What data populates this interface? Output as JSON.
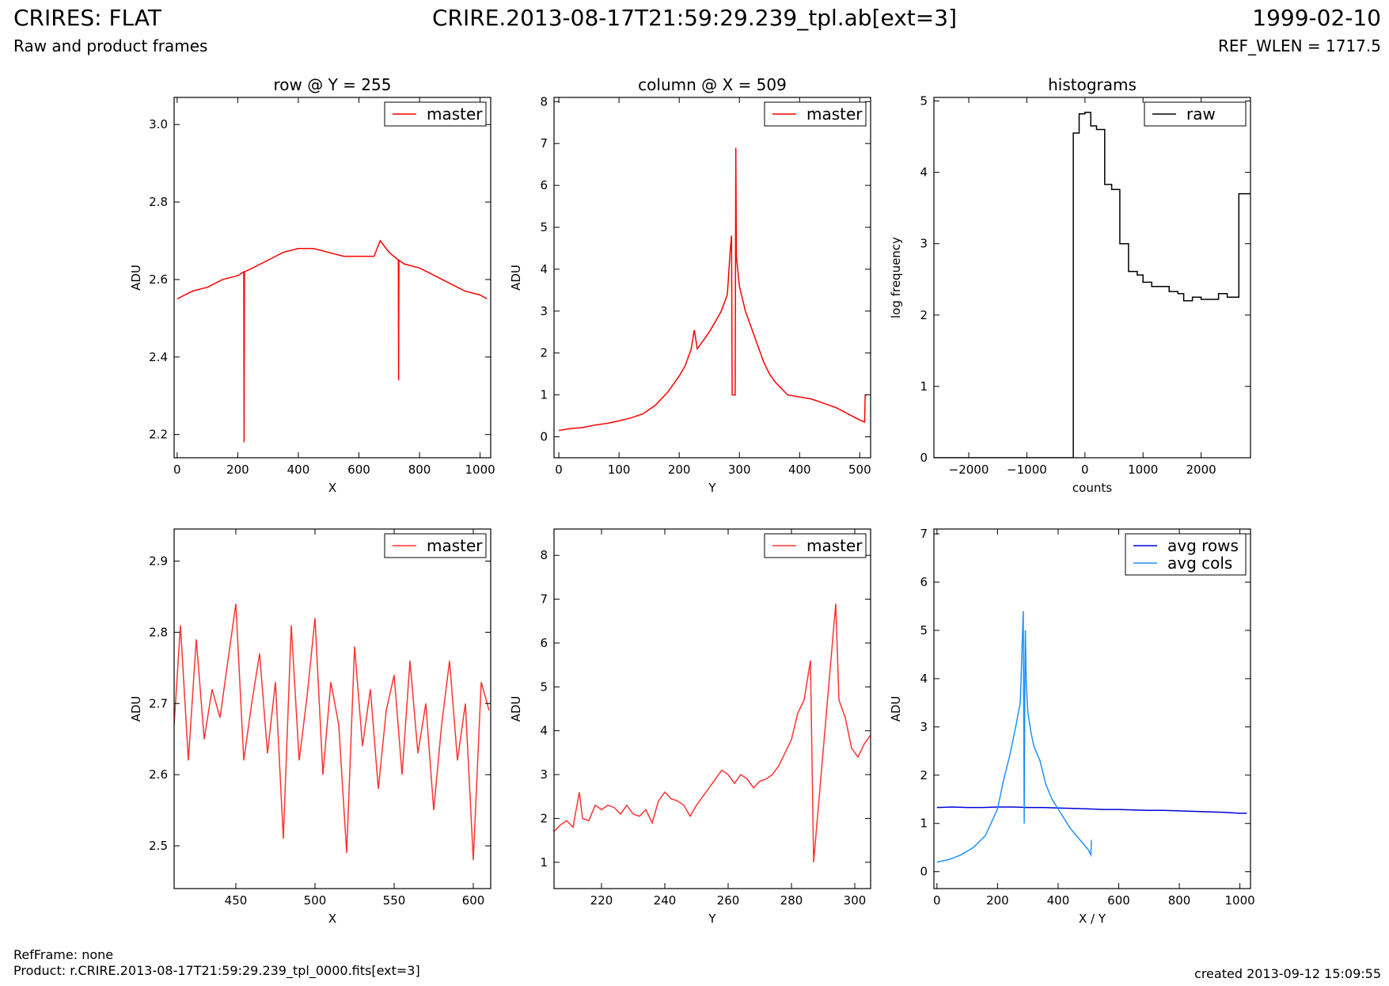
{
  "header": {
    "title_left": "CRIRES: FLAT",
    "subtitle_left": "Raw and product frames",
    "title_center": "CRIRE.2013-08-17T21:59:29.239_tpl.ab[ext=3]",
    "date_right": "1999-02-10",
    "ref_wlen": "REF_WLEN = 1717.5"
  },
  "footer": {
    "ref_frame": "RefFrame: none",
    "product": "Product: r.CRIRE.2013-08-17T21:59:29.239_tpl_0000.fits[ext=3]",
    "created": "created 2013-09-12 15:09:55"
  },
  "chart_data": [
    {
      "type": "line",
      "title": "row @ Y = 255",
      "xlabel": "X",
      "ylabel": "ADU",
      "xlim": [
        -10,
        1035
      ],
      "ylim": [
        2.14,
        3.07
      ],
      "xticks": [
        0,
        200,
        400,
        600,
        800,
        1000
      ],
      "yticks": [
        2.2,
        2.4,
        2.6,
        2.8,
        3.0
      ],
      "ytick_labels": [
        "2.2",
        "2.4",
        "2.6",
        "2.8",
        "3.0"
      ],
      "legend": "top-right",
      "series": [
        {
          "name": "master",
          "color": "#ff0000",
          "x": [
            0,
            50,
            100,
            150,
            200,
            220,
            221,
            222,
            250,
            300,
            350,
            400,
            450,
            500,
            550,
            600,
            650,
            670,
            700,
            730,
            731,
            732,
            750,
            800,
            850,
            900,
            950,
            1000,
            1023
          ],
          "y": [
            2.55,
            2.57,
            2.58,
            2.6,
            2.61,
            2.62,
            2.18,
            2.62,
            2.63,
            2.65,
            2.67,
            2.68,
            2.68,
            2.67,
            2.66,
            2.66,
            2.66,
            2.7,
            2.67,
            2.65,
            2.34,
            2.65,
            2.64,
            2.63,
            2.61,
            2.59,
            2.57,
            2.56,
            2.55
          ]
        }
      ]
    },
    {
      "type": "line",
      "title": "column @ X = 509",
      "xlabel": "Y",
      "ylabel": "ADU",
      "xlim": [
        -8,
        518
      ],
      "ylim": [
        -0.5,
        8.1
      ],
      "xticks": [
        0,
        100,
        200,
        300,
        400,
        500
      ],
      "yticks": [
        0,
        1,
        2,
        3,
        4,
        5,
        6,
        7,
        8
      ],
      "legend": "top-right",
      "series": [
        {
          "name": "master",
          "color": "#ff0000",
          "x": [
            0,
            20,
            40,
            60,
            80,
            100,
            120,
            140,
            160,
            180,
            200,
            210,
            220,
            225,
            230,
            240,
            250,
            260,
            270,
            275,
            280,
            285,
            287,
            288,
            293,
            294,
            295,
            300,
            310,
            320,
            330,
            340,
            350,
            360,
            370,
            380,
            400,
            420,
            440,
            460,
            480,
            500,
            508,
            509,
            511
          ],
          "y": [
            0.15,
            0.2,
            0.22,
            0.28,
            0.32,
            0.38,
            0.45,
            0.55,
            0.75,
            1.05,
            1.45,
            1.7,
            2.1,
            2.55,
            2.1,
            2.3,
            2.5,
            2.75,
            3.0,
            3.2,
            3.4,
            4.5,
            4.8,
            1.0,
            1.0,
            6.9,
            4.3,
            3.6,
            3.0,
            2.6,
            2.2,
            1.8,
            1.5,
            1.3,
            1.15,
            1.0,
            0.95,
            0.9,
            0.8,
            0.7,
            0.55,
            0.4,
            0.35,
            1.0,
            1.0
          ]
        }
      ]
    },
    {
      "type": "line",
      "title": "histograms",
      "xlabel": "counts",
      "ylabel": "log frequency",
      "xlim": [
        -2600,
        2850
      ],
      "ylim": [
        0,
        5.05
      ],
      "xticks": [
        -2000,
        -1000,
        0,
        1000,
        2000
      ],
      "xtick_labels": [
        "−2000",
        "−1000",
        "0",
        "1000",
        "2000"
      ],
      "yticks": [
        0,
        1,
        2,
        3,
        4,
        5
      ],
      "legend": "top-right",
      "series": [
        {
          "name": "raw",
          "color": "#000000",
          "x": [
            -2600,
            -200,
            -200,
            -100,
            -100,
            0,
            0,
            100,
            100,
            200,
            200,
            340,
            340,
            460,
            460,
            600,
            600,
            750,
            750,
            900,
            900,
            1000,
            1000,
            1150,
            1150,
            1300,
            1300,
            1450,
            1450,
            1600,
            1600,
            1700,
            1700,
            1850,
            1850,
            2000,
            2000,
            2150,
            2150,
            2300,
            2300,
            2450,
            2450,
            2650,
            2650,
            2850
          ],
          "y": [
            0,
            0,
            4.55,
            4.55,
            4.82,
            4.82,
            4.84,
            4.84,
            4.65,
            4.65,
            4.6,
            4.6,
            3.83,
            3.83,
            3.76,
            3.76,
            3.0,
            3.0,
            2.61,
            2.61,
            2.56,
            2.56,
            2.46,
            2.46,
            2.4,
            2.4,
            2.4,
            2.4,
            2.33,
            2.33,
            2.3,
            2.3,
            2.2,
            2.2,
            2.25,
            2.25,
            2.22,
            2.22,
            2.22,
            2.22,
            2.3,
            2.3,
            2.25,
            2.25,
            3.7,
            3.7
          ]
        }
      ]
    },
    {
      "type": "line",
      "title": "",
      "xlabel": "X",
      "ylabel": "ADU",
      "xlim": [
        411,
        611
      ],
      "ylim": [
        2.44,
        2.945
      ],
      "xticks": [
        450,
        500,
        550,
        600
      ],
      "yticks": [
        2.5,
        2.6,
        2.7,
        2.8,
        2.9
      ],
      "legend": "top-right",
      "series": [
        {
          "name": "master",
          "color": "#ff3333",
          "x": [
            411,
            415,
            420,
            425,
            430,
            435,
            440,
            445,
            450,
            455,
            460,
            465,
            470,
            475,
            480,
            485,
            490,
            495,
            500,
            505,
            510,
            515,
            520,
            525,
            530,
            535,
            540,
            545,
            550,
            555,
            560,
            565,
            570,
            575,
            580,
            585,
            590,
            595,
            600,
            605,
            610
          ],
          "y": [
            2.67,
            2.81,
            2.62,
            2.79,
            2.65,
            2.72,
            2.68,
            2.76,
            2.84,
            2.62,
            2.7,
            2.77,
            2.63,
            2.73,
            2.51,
            2.81,
            2.62,
            2.71,
            2.82,
            2.6,
            2.73,
            2.67,
            2.49,
            2.78,
            2.64,
            2.72,
            2.58,
            2.69,
            2.74,
            2.6,
            2.76,
            2.63,
            2.7,
            2.55,
            2.67,
            2.76,
            2.62,
            2.7,
            2.48,
            2.73,
            2.69
          ]
        }
      ]
    },
    {
      "type": "line",
      "title": "",
      "xlabel": "Y",
      "ylabel": "ADU",
      "xlim": [
        205,
        305
      ],
      "ylim": [
        0.4,
        8.6
      ],
      "xticks": [
        220,
        240,
        260,
        280,
        300
      ],
      "yticks": [
        1,
        2,
        3,
        4,
        5,
        6,
        7,
        8
      ],
      "legend": "top-right",
      "series": [
        {
          "name": "master",
          "color": "#ff3333",
          "x": [
            205,
            207,
            209,
            211,
            213,
            214,
            216,
            218,
            220,
            222,
            224,
            226,
            228,
            230,
            232,
            234,
            236,
            238,
            240,
            242,
            244,
            246,
            248,
            250,
            252,
            254,
            256,
            258,
            260,
            262,
            264,
            266,
            268,
            270,
            272,
            274,
            276,
            278,
            280,
            282,
            284,
            286,
            287,
            294,
            295,
            297,
            299,
            301,
            303,
            305
          ],
          "y": [
            1.7,
            1.85,
            1.95,
            1.8,
            2.6,
            2.0,
            1.95,
            2.3,
            2.2,
            2.3,
            2.25,
            2.1,
            2.3,
            2.1,
            2.05,
            2.2,
            1.9,
            2.4,
            2.6,
            2.45,
            2.4,
            2.3,
            2.05,
            2.3,
            2.5,
            2.7,
            2.9,
            3.1,
            3.0,
            2.8,
            3.0,
            2.9,
            2.7,
            2.85,
            2.9,
            3.0,
            3.2,
            3.5,
            3.8,
            4.4,
            4.7,
            5.6,
            1.0,
            6.9,
            4.7,
            4.3,
            3.6,
            3.4,
            3.7,
            3.9
          ]
        }
      ]
    },
    {
      "type": "line",
      "title": "",
      "xlabel": "X / Y",
      "ylabel": "ADU",
      "xlim": [
        -10,
        1035
      ],
      "ylim": [
        -0.35,
        7.1
      ],
      "xticks": [
        0,
        200,
        400,
        600,
        800,
        1000
      ],
      "yticks": [
        0,
        1,
        2,
        3,
        4,
        5,
        6,
        7
      ],
      "legend": "top-right",
      "series": [
        {
          "name": "avg rows",
          "color": "#0000dd",
          "x": [
            0,
            50,
            100,
            150,
            200,
            250,
            300,
            350,
            400,
            450,
            500,
            550,
            600,
            650,
            700,
            750,
            800,
            850,
            900,
            950,
            1000,
            1023
          ],
          "y": [
            1.33,
            1.34,
            1.33,
            1.33,
            1.34,
            1.34,
            1.33,
            1.33,
            1.32,
            1.31,
            1.3,
            1.29,
            1.29,
            1.28,
            1.27,
            1.27,
            1.26,
            1.25,
            1.24,
            1.23,
            1.21,
            1.21
          ]
        },
        {
          "name": "avg cols",
          "color": "#1e90ff",
          "x": [
            0,
            40,
            80,
            120,
            160,
            200,
            220,
            240,
            260,
            275,
            285,
            288,
            290,
            292,
            295,
            300,
            310,
            320,
            340,
            360,
            380,
            400,
            420,
            440,
            460,
            480,
            500,
            508,
            510,
            511
          ],
          "y": [
            0.2,
            0.25,
            0.35,
            0.5,
            0.75,
            1.3,
            1.9,
            2.4,
            3.0,
            3.5,
            5.4,
            1.0,
            3.8,
            5.0,
            3.9,
            3.3,
            2.9,
            2.6,
            2.3,
            1.8,
            1.5,
            1.3,
            1.1,
            0.9,
            0.75,
            0.6,
            0.45,
            0.35,
            0.65,
            0.65
          ]
        }
      ]
    }
  ]
}
